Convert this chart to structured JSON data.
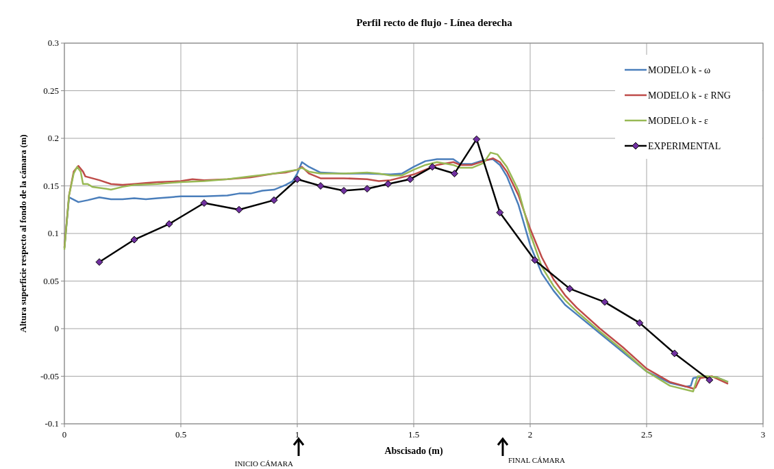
{
  "chart_data": {
    "type": "line",
    "title": "Perfil recto de flujo - Línea derecha",
    "xlabel": "Abscisado (m)",
    "ylabel": "Altura superficie respecto al fondo de la cámara (m)",
    "xlim": [
      0,
      3
    ],
    "xticks": [
      0,
      0.5,
      1,
      1.5,
      2,
      2.5,
      3
    ],
    "ylim": [
      -0.1,
      0.3
    ],
    "yticks": [
      -0.1,
      -0.05,
      0,
      0.05,
      0.1,
      0.15,
      0.2,
      0.25,
      0.3
    ],
    "grid": true,
    "legend": "top right",
    "annotations": [
      "INICIO CÁMARA",
      "FINAL CÁMARA"
    ],
    "series": [
      {
        "name": "MODELO k - ω",
        "color": "#4a7ebb",
        "marker": "none",
        "x": [
          0,
          0.02,
          0.06,
          0.1,
          0.15,
          0.2,
          0.25,
          0.3,
          0.35,
          0.4,
          0.45,
          0.5,
          0.6,
          0.7,
          0.75,
          0.8,
          0.85,
          0.9,
          0.95,
          0.98,
          1.0,
          1.02,
          1.05,
          1.1,
          1.2,
          1.3,
          1.4,
          1.45,
          1.5,
          1.55,
          1.6,
          1.67,
          1.7,
          1.75,
          1.8,
          1.84,
          1.87,
          1.9,
          1.95,
          2.0,
          2.05,
          2.1,
          2.15,
          2.2,
          2.3,
          2.4,
          2.5,
          2.6,
          2.67,
          2.69,
          2.7,
          2.75,
          2.8,
          2.85
        ],
        "values": [
          0.085,
          0.138,
          0.133,
          0.135,
          0.138,
          0.136,
          0.136,
          0.137,
          0.136,
          0.137,
          0.138,
          0.139,
          0.139,
          0.14,
          0.142,
          0.142,
          0.145,
          0.146,
          0.151,
          0.155,
          0.163,
          0.175,
          0.17,
          0.164,
          0.163,
          0.163,
          0.162,
          0.163,
          0.17,
          0.176,
          0.178,
          0.178,
          0.173,
          0.173,
          0.177,
          0.178,
          0.172,
          0.16,
          0.13,
          0.088,
          0.058,
          0.04,
          0.025,
          0.015,
          -0.005,
          -0.025,
          -0.045,
          -0.057,
          -0.061,
          -0.06,
          -0.052,
          -0.05,
          -0.051,
          -0.056
        ]
      },
      {
        "name": "MODELO k - ε RNG",
        "color": "#be4b48",
        "marker": "none",
        "x": [
          0,
          0.02,
          0.04,
          0.06,
          0.08,
          0.09,
          0.15,
          0.2,
          0.25,
          0.3,
          0.35,
          0.4,
          0.5,
          0.55,
          0.6,
          0.7,
          0.8,
          0.9,
          0.95,
          1.0,
          1.02,
          1.05,
          1.1,
          1.2,
          1.3,
          1.35,
          1.4,
          1.5,
          1.6,
          1.67,
          1.7,
          1.75,
          1.8,
          1.84,
          1.87,
          1.9,
          1.95,
          2.0,
          2.05,
          2.1,
          2.15,
          2.2,
          2.3,
          2.4,
          2.5,
          2.6,
          2.7,
          2.71,
          2.73,
          2.78,
          2.85
        ],
        "values": [
          0.085,
          0.14,
          0.165,
          0.171,
          0.165,
          0.16,
          0.156,
          0.152,
          0.151,
          0.152,
          0.153,
          0.154,
          0.155,
          0.157,
          0.156,
          0.157,
          0.159,
          0.163,
          0.164,
          0.167,
          0.17,
          0.163,
          0.158,
          0.158,
          0.157,
          0.155,
          0.156,
          0.162,
          0.172,
          0.175,
          0.172,
          0.172,
          0.176,
          0.179,
          0.175,
          0.165,
          0.14,
          0.105,
          0.075,
          0.052,
          0.035,
          0.022,
          0.0,
          -0.02,
          -0.042,
          -0.056,
          -0.063,
          -0.062,
          -0.052,
          -0.05,
          -0.058
        ]
      },
      {
        "name": "MODELO k - ε",
        "color": "#98b954",
        "marker": "none",
        "x": [
          0,
          0.02,
          0.04,
          0.055,
          0.07,
          0.08,
          0.1,
          0.12,
          0.18,
          0.2,
          0.25,
          0.3,
          0.4,
          0.5,
          0.6,
          0.7,
          0.8,
          0.9,
          0.95,
          1.0,
          1.02,
          1.05,
          1.1,
          1.2,
          1.3,
          1.35,
          1.4,
          1.45,
          1.5,
          1.55,
          1.6,
          1.67,
          1.7,
          1.75,
          1.8,
          1.83,
          1.86,
          1.9,
          1.95,
          2.0,
          2.05,
          2.1,
          2.15,
          2.2,
          2.3,
          2.4,
          2.5,
          2.6,
          2.7,
          2.72,
          2.76,
          2.8,
          2.85
        ],
        "values": [
          0.083,
          0.14,
          0.163,
          0.17,
          0.165,
          0.152,
          0.152,
          0.149,
          0.147,
          0.146,
          0.149,
          0.151,
          0.152,
          0.154,
          0.155,
          0.157,
          0.16,
          0.163,
          0.165,
          0.167,
          0.169,
          0.165,
          0.163,
          0.163,
          0.164,
          0.163,
          0.161,
          0.161,
          0.167,
          0.172,
          0.175,
          0.172,
          0.169,
          0.169,
          0.174,
          0.185,
          0.183,
          0.17,
          0.145,
          0.1,
          0.065,
          0.045,
          0.03,
          0.018,
          -0.003,
          -0.023,
          -0.045,
          -0.06,
          -0.066,
          -0.05,
          -0.05,
          -0.051,
          -0.056
        ]
      },
      {
        "name": "EXPERIMENTAL",
        "color": "#000000",
        "marker": "diamond",
        "colors": [
          "#7030a0",
          "#7030a0",
          "#7030a0",
          "#7030a0",
          "#7030a0",
          "#7030a0",
          "#7030a0",
          "#7030a0",
          "#7030a0",
          "#7030a0",
          "#7030a0",
          "#7030a0",
          "#7030a0",
          "#7030a0",
          "#7030a0",
          "#7030a0",
          "#7030a0",
          "#7030a0",
          "#7030a0",
          "#7030a0",
          "#7030a0",
          "#7030a0"
        ],
        "x": [
          0.15,
          0.3,
          0.45,
          0.6,
          0.75,
          0.9,
          1.0,
          1.1,
          1.2,
          1.3,
          1.39,
          1.485,
          1.58,
          1.675,
          1.77,
          1.87,
          2.02,
          2.17,
          2.32,
          2.47,
          2.62,
          2.77
        ],
        "values": [
          0.07,
          0.0935,
          0.11,
          0.132,
          0.125,
          0.135,
          0.157,
          0.15,
          0.145,
          0.147,
          0.152,
          0.157,
          0.17,
          0.163,
          0.199,
          0.122,
          0.072,
          0.042,
          0.028,
          0.006,
          -0.026,
          -0.054
        ]
      }
    ]
  }
}
